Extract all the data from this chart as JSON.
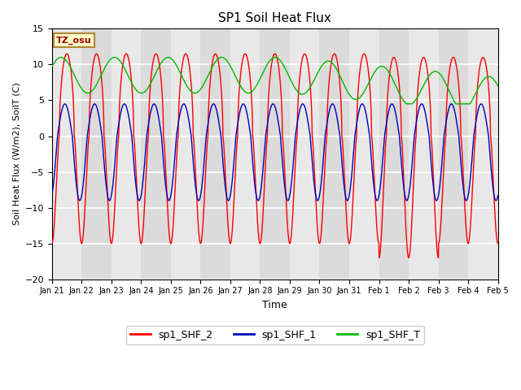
{
  "title": "SP1 Soil Heat Flux",
  "xlabel": "Time",
  "ylabel": "Soil Heat Flux (W/m2), SoilT (C)",
  "ylim": [
    -20,
    15
  ],
  "yticks": [
    -20,
    -15,
    -10,
    -5,
    0,
    5,
    10,
    15
  ],
  "xtick_labels": [
    "Jan 21",
    "Jan 22",
    "Jan 23",
    "Jan 24",
    "Jan 25",
    "Jan 26",
    "Jan 27",
    "Jan 28",
    "Jan 29",
    "Jan 30",
    "Jan 31",
    "Feb 1",
    "Feb 2",
    "Feb 3",
    "Feb 4",
    "Feb 5"
  ],
  "color_red": "#ff0000",
  "color_blue": "#0000bb",
  "color_green": "#00bb00",
  "bg_color": "#e8e8e8",
  "fig_bg_color": "#ffffff",
  "tz_label": "TZ_osu",
  "tz_text_color": "#990000",
  "tz_bg_color": "#ffffcc",
  "legend_labels": [
    "sp1_SHF_2",
    "sp1_SHF_1",
    "sp1_SHF_T"
  ]
}
